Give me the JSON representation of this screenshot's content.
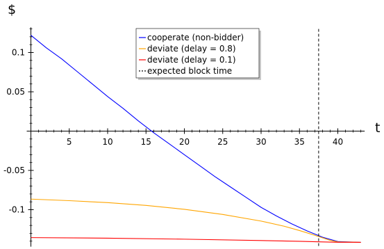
{
  "chart_data": {
    "type": "line",
    "xlabel": "t",
    "ylabel": "$",
    "xlim": [
      0,
      43.5
    ],
    "ylim": [
      -0.147,
      0.132
    ],
    "grid": false,
    "legend_placement": "top-center",
    "x_ticks": [
      5,
      10,
      15,
      20,
      25,
      30,
      35,
      40
    ],
    "y_ticks": [
      0.1,
      0.05,
      -0.05,
      -0.1
    ],
    "y_tick_labels": [
      "0.1",
      "0.05",
      "-0.05",
      "-0.1"
    ],
    "series": [
      {
        "name": "cooperate (non-bidder)",
        "color": "#0000ff",
        "style": "solid",
        "x": [
          0,
          2,
          4,
          6,
          8,
          10,
          12,
          14,
          16,
          18,
          20,
          22,
          24,
          26,
          28,
          30,
          32,
          34,
          36,
          38,
          40,
          43
        ],
        "y": [
          0.122,
          0.106,
          0.092,
          0.076,
          0.06,
          0.044,
          0.029,
          0.013,
          -0.002,
          -0.016,
          -0.03,
          -0.044,
          -0.058,
          -0.071,
          -0.084,
          -0.097,
          -0.108,
          -0.118,
          -0.127,
          -0.135,
          -0.1405,
          -0.1415
        ]
      },
      {
        "name": "deviate (delay = 0.8)",
        "color": "#ffa500",
        "style": "solid",
        "x": [
          0,
          5,
          10,
          15,
          20,
          25,
          30,
          33,
          35,
          37,
          39,
          40,
          43
        ],
        "y": [
          -0.0865,
          -0.0885,
          -0.091,
          -0.0945,
          -0.0995,
          -0.106,
          -0.1145,
          -0.121,
          -0.1265,
          -0.1325,
          -0.139,
          -0.141,
          -0.1415
        ]
      },
      {
        "name": "deviate (delay = 0.1)",
        "color": "#ff0000",
        "style": "solid",
        "x": [
          0,
          10,
          20,
          30,
          35,
          38,
          40,
          43
        ],
        "y": [
          -0.1355,
          -0.1362,
          -0.1375,
          -0.1392,
          -0.1402,
          -0.141,
          -0.1414,
          -0.1415
        ]
      },
      {
        "name": "expected block time",
        "color": "#000000",
        "style": "dashed",
        "type": "vline",
        "x": [
          37.5
        ]
      }
    ]
  }
}
